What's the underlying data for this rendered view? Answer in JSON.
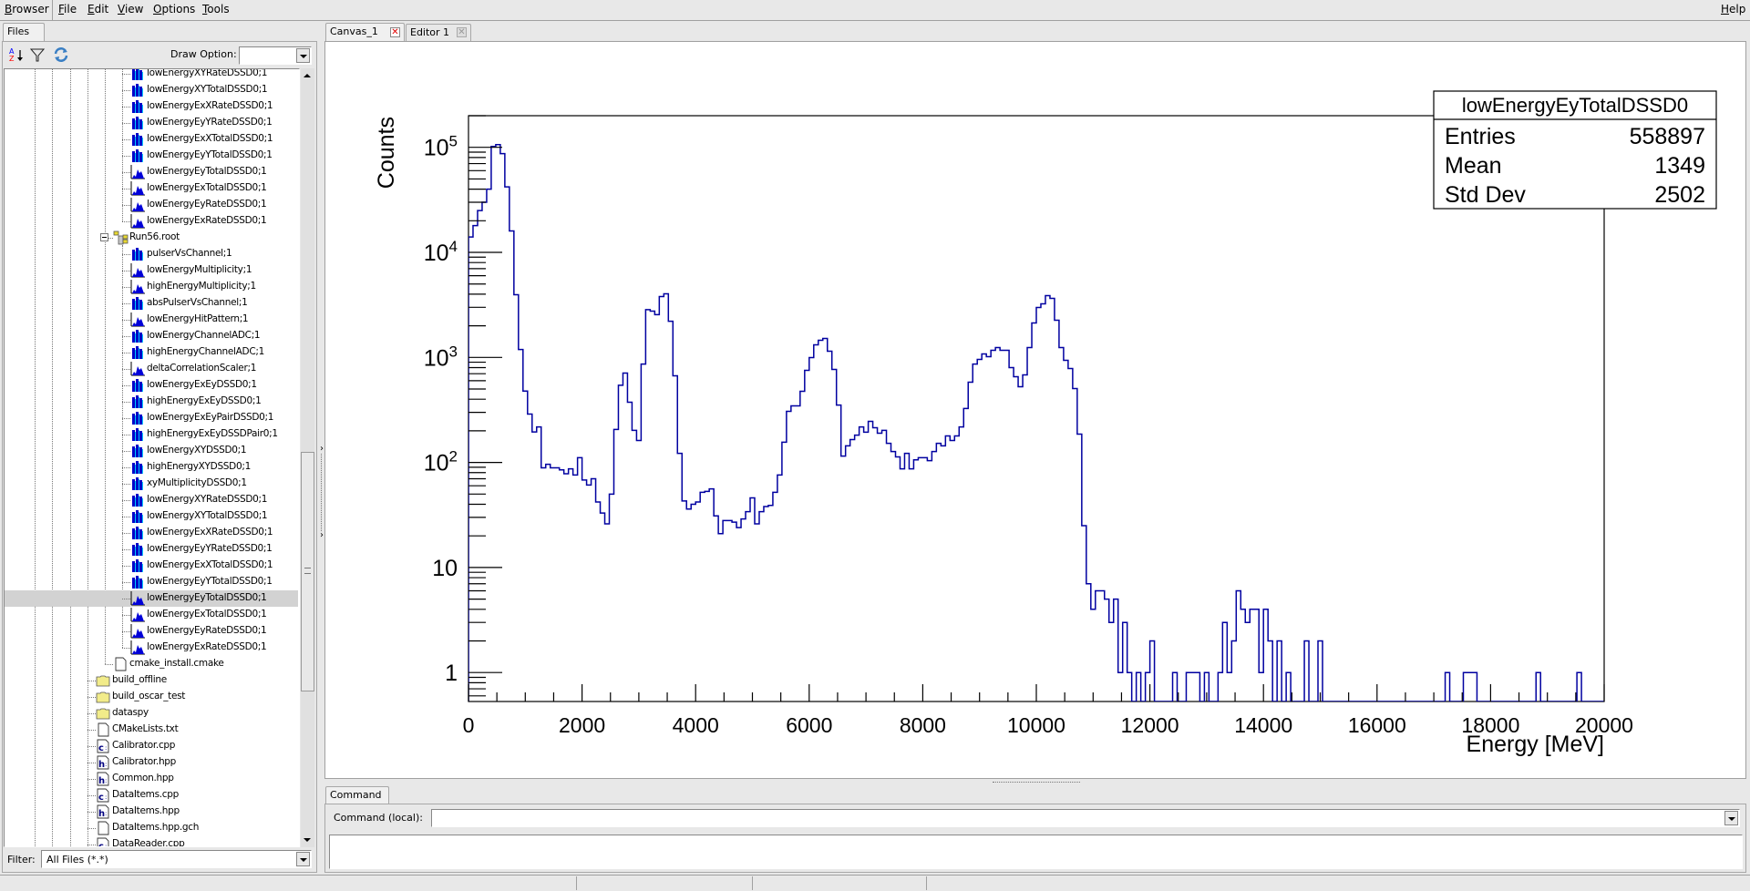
{
  "menubar": {
    "items": [
      "Browser",
      "File",
      "Edit",
      "View",
      "Options",
      "Tools"
    ],
    "help": "Help"
  },
  "browser": {
    "tab": "Files",
    "toolbar_icons": [
      "sort-az-icon",
      "filter-icon",
      "refresh-icon"
    ],
    "draw_option_label": "Draw Option:",
    "draw_option_value": "",
    "filter_label": "Filter:",
    "filter_value": "All Files (*.*)",
    "selected_index": 32,
    "tree": [
      {
        "label": "lowEnergyXYRateDSSD0;1",
        "icon": "th2-icon",
        "depth": 6
      },
      {
        "label": "lowEnergyXYTotalDSSD0;1",
        "icon": "th2-icon",
        "depth": 6
      },
      {
        "label": "lowEnergyExXRateDSSD0;1",
        "icon": "th2-icon",
        "depth": 6
      },
      {
        "label": "lowEnergyEyYRateDSSD0;1",
        "icon": "th2-icon",
        "depth": 6
      },
      {
        "label": "lowEnergyExXTotalDSSD0;1",
        "icon": "th2-icon",
        "depth": 6
      },
      {
        "label": "lowEnergyEyYTotalDSSD0;1",
        "icon": "th2-icon",
        "depth": 6
      },
      {
        "label": "lowEnergyEyTotalDSSD0;1",
        "icon": "th1-icon",
        "depth": 6
      },
      {
        "label": "lowEnergyExTotalDSSD0;1",
        "icon": "th1-icon",
        "depth": 6
      },
      {
        "label": "lowEnergyEyRateDSSD0;1",
        "icon": "th1-icon",
        "depth": 6
      },
      {
        "label": "lowEnergyExRateDSSD0;1",
        "icon": "th1-icon",
        "depth": 6
      },
      {
        "label": "Run56.root",
        "icon": "root-file-icon",
        "depth": 5,
        "expanded": true
      },
      {
        "label": "pulserVsChannel;1",
        "icon": "th2-icon",
        "depth": 6
      },
      {
        "label": "lowEnergyMultiplicity;1",
        "icon": "th1-icon",
        "depth": 6
      },
      {
        "label": "highEnergyMultiplicity;1",
        "icon": "th1-icon",
        "depth": 6
      },
      {
        "label": "absPulserVsChannel;1",
        "icon": "th2-icon",
        "depth": 6
      },
      {
        "label": "lowEnergyHitPattern;1",
        "icon": "th1-icon",
        "depth": 6
      },
      {
        "label": "lowEnergyChannelADC;1",
        "icon": "th2-icon",
        "depth": 6
      },
      {
        "label": "highEnergyChannelADC;1",
        "icon": "th2-icon",
        "depth": 6
      },
      {
        "label": "deltaCorrelationScaler;1",
        "icon": "th1-icon",
        "depth": 6
      },
      {
        "label": "lowEnergyExEyDSSD0;1",
        "icon": "th2-icon",
        "depth": 6
      },
      {
        "label": "highEnergyExEyDSSD0;1",
        "icon": "th2-icon",
        "depth": 6
      },
      {
        "label": "lowEnergyExEyPairDSSD0;1",
        "icon": "th2-icon",
        "depth": 6
      },
      {
        "label": "highEnergyExEyDSSDPair0;1",
        "icon": "th2-icon",
        "depth": 6
      },
      {
        "label": "lowEnergyXYDSSD0;1",
        "icon": "th2-icon",
        "depth": 6
      },
      {
        "label": "highEnergyXYDSSD0;1",
        "icon": "th2-icon",
        "depth": 6
      },
      {
        "label": "xyMultiplicityDSSD0;1",
        "icon": "th2-icon",
        "depth": 6
      },
      {
        "label": "lowEnergyXYRateDSSD0;1",
        "icon": "th2-icon",
        "depth": 6
      },
      {
        "label": "lowEnergyXYTotalDSSD0;1",
        "icon": "th2-icon",
        "depth": 6
      },
      {
        "label": "lowEnergyExXRateDSSD0;1",
        "icon": "th2-icon",
        "depth": 6
      },
      {
        "label": "lowEnergyEyYRateDSSD0;1",
        "icon": "th2-icon",
        "depth": 6
      },
      {
        "label": "lowEnergyExXTotalDSSD0;1",
        "icon": "th2-icon",
        "depth": 6
      },
      {
        "label": "lowEnergyEyYTotalDSSD0;1",
        "icon": "th2-icon",
        "depth": 6
      },
      {
        "label": "lowEnergyEyTotalDSSD0;1",
        "icon": "th1-icon",
        "depth": 6
      },
      {
        "label": "lowEnergyExTotalDSSD0;1",
        "icon": "th1-icon",
        "depth": 6
      },
      {
        "label": "lowEnergyEyRateDSSD0;1",
        "icon": "th1-icon",
        "depth": 6
      },
      {
        "label": "lowEnergyExRateDSSD0;1",
        "icon": "th1-icon",
        "depth": 6
      },
      {
        "label": "cmake_install.cmake",
        "icon": "file-icon",
        "depth": 5
      },
      {
        "label": "build_offline",
        "icon": "folder-icon",
        "depth": 4
      },
      {
        "label": "build_oscar_test",
        "icon": "folder-icon",
        "depth": 4
      },
      {
        "label": "dataspy",
        "icon": "folder-icon",
        "depth": 4
      },
      {
        "label": "CMakeLists.txt",
        "icon": "file-icon",
        "depth": 4
      },
      {
        "label": "Calibrator.cpp",
        "icon": "cpp-source-icon",
        "depth": 4
      },
      {
        "label": "Calibrator.hpp",
        "icon": "header-icon",
        "depth": 4
      },
      {
        "label": "Common.hpp",
        "icon": "header-icon",
        "depth": 4
      },
      {
        "label": "DataItems.cpp",
        "icon": "cpp-source-icon",
        "depth": 4
      },
      {
        "label": "DataItems.hpp",
        "icon": "header-icon",
        "depth": 4
      },
      {
        "label": "DataItems.hpp.gch",
        "icon": "file-icon",
        "depth": 4
      },
      {
        "label": "DataReader.cpp",
        "icon": "cpp-source-icon",
        "depth": 4
      }
    ]
  },
  "canvas_tabs": [
    {
      "label": "Canvas_1",
      "close_icon": "close-icon-red"
    },
    {
      "label": "Editor 1",
      "close_icon": "close-icon-disabled"
    }
  ],
  "command": {
    "tab": "Command",
    "label": "Command (local):",
    "value": ""
  },
  "chart_data": {
    "type": "histogram",
    "title": "lowEnergyEyTotalDSSD0",
    "xlabel": "Energy [MeV]",
    "ylabel": "Counts",
    "xlim": [
      0,
      20000
    ],
    "ylim": [
      0.53,
      200000
    ],
    "yscale": "log",
    "bin_width": 80,
    "line_color": "#0000a0",
    "x_ticks": [
      "0",
      "2000",
      "4000",
      "6000",
      "8000",
      "10000",
      "12000",
      "14000",
      "16000",
      "18000",
      "20000"
    ],
    "y_ticks": [
      {
        "value": 1,
        "label": "1"
      },
      {
        "value": 10,
        "label": "10"
      },
      {
        "value": 100,
        "label": "10",
        "exp": "2"
      },
      {
        "value": 1000,
        "label": "10",
        "exp": "3"
      },
      {
        "value": 10000,
        "label": "10",
        "exp": "4"
      },
      {
        "value": 100000,
        "label": "10",
        "exp": "5"
      }
    ],
    "stats": [
      {
        "label": "Entries",
        "value": "558897"
      },
      {
        "label": "Mean",
        "value": "1349"
      },
      {
        "label": "Std Dev",
        "value": "2502"
      }
    ],
    "counts": [
      14000,
      18000,
      25000,
      30000,
      40000,
      102000,
      106000,
      87000,
      42000,
      16000,
      3950,
      1190,
      478,
      289,
      195,
      218,
      89,
      96,
      89,
      89,
      85,
      78,
      87,
      76,
      111,
      68,
      61,
      70,
      42,
      33,
      26,
      50,
      206,
      543,
      709,
      374,
      202,
      162,
      865,
      2850,
      2760,
      2550,
      3800,
      4030,
      2210,
      668,
      122,
      43,
      36,
      40,
      42,
      52,
      53,
      56,
      31,
      21,
      28,
      28,
      27,
      24,
      29,
      34,
      46,
      26,
      34,
      38,
      39,
      52,
      76,
      156,
      307,
      346,
      346,
      476,
      753,
      995,
      1318,
      1455,
      1515,
      1145,
      768,
      352,
      115,
      144,
      165,
      182,
      218,
      194,
      246,
      214,
      190,
      202,
      152,
      127,
      113,
      87,
      122,
      87,
      106,
      111,
      111,
      104,
      127,
      152,
      144,
      179,
      162,
      179,
      218,
      326,
      581,
      865,
      957,
      1080,
      1016,
      1168,
      1242,
      1168,
      1168,
      800,
      655,
      526,
      682,
      1242,
      2128,
      2986,
      3236,
      3870,
      3650,
      2260,
      1242,
      938,
      784,
      505,
      186,
      25,
      7,
      4,
      6,
      6,
      5,
      3,
      5,
      1,
      3,
      1,
      0,
      1,
      0,
      1,
      2,
      0,
      0,
      0,
      0,
      1,
      0,
      0,
      1,
      1,
      1,
      0,
      1,
      0,
      0,
      1,
      3,
      1,
      2,
      6,
      4,
      3,
      4,
      4,
      1,
      4,
      2,
      0,
      2,
      0,
      1,
      0,
      0,
      0,
      2,
      0,
      0,
      2,
      0,
      0,
      0,
      0,
      0,
      0,
      0,
      0,
      0,
      0,
      0,
      0,
      0,
      0,
      0,
      0,
      0,
      0,
      0,
      0,
      0,
      0,
      0,
      0,
      0,
      0,
      0,
      1,
      0,
      0,
      0,
      1,
      1,
      1,
      0,
      0,
      0,
      0,
      0,
      0,
      0,
      0,
      0,
      0,
      0,
      0,
      0,
      1,
      0,
      0,
      0,
      0,
      0,
      0,
      0,
      0,
      1,
      0,
      0,
      0,
      0,
      0
    ]
  }
}
